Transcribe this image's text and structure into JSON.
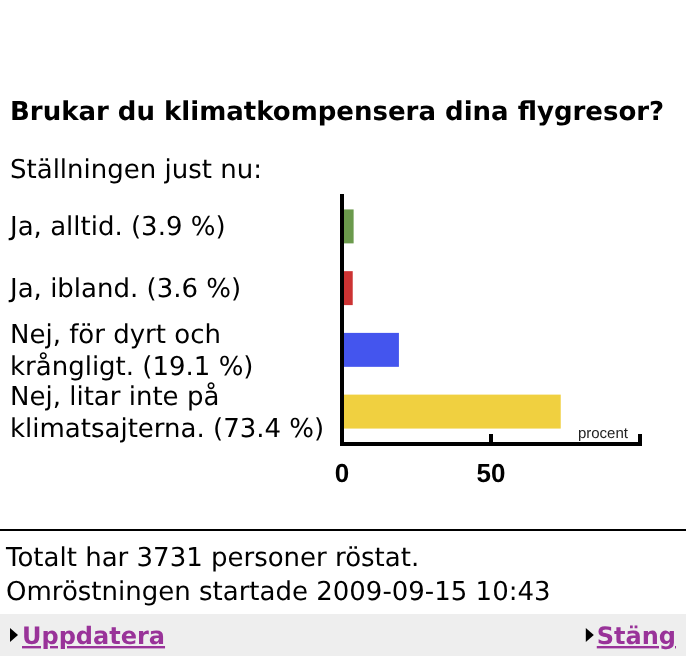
{
  "chart_data": {
    "type": "bar",
    "orientation": "horizontal",
    "title": "Brukar du klimatkompensera dina flygresor?",
    "subtitle": "Ställningen just nu:",
    "xlabel": "procent",
    "categories": [
      "Ja, alltid. (3.9 %)",
      "Ja, ibland. (3.6 %)",
      "Nej, för dyrt och krångligt. (19.1 %)",
      "Nej, litar inte på klimatsajterna. (73.4 %)"
    ],
    "values": [
      3.9,
      3.6,
      19.1,
      73.4
    ],
    "colors": [
      "#6b9a4c",
      "#cc3333",
      "#4455ee",
      "#f0d040"
    ],
    "xlim": [
      0,
      100
    ],
    "xticks": [
      0,
      50,
      {
        "value": 100,
        "label": null
      }
    ],
    "grid": false,
    "annotations": [
      "Totalt har 3731 personer röstat.",
      "Omröstningen startade 2009-09-15 10:43",
      "Uppdatera",
      "Stäng"
    ]
  }
}
